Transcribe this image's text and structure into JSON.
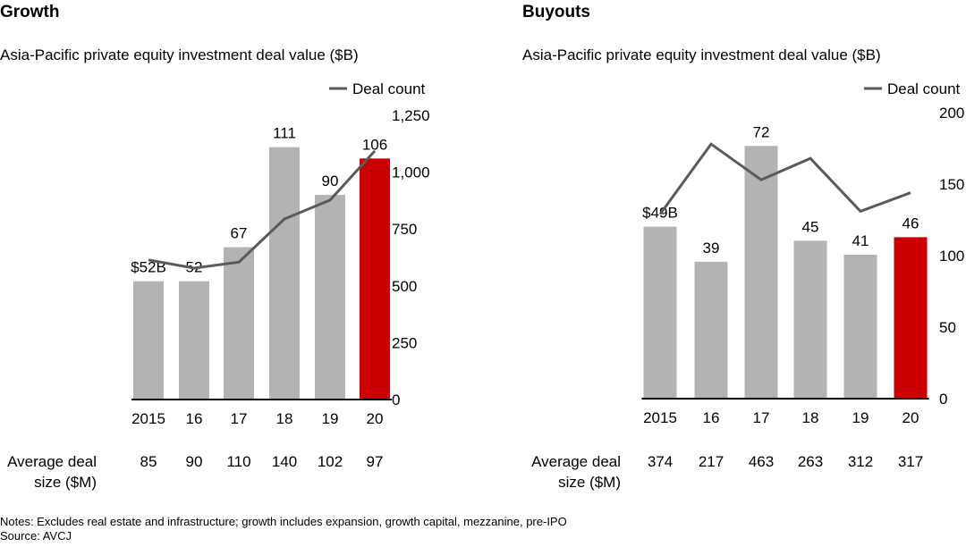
{
  "notes": "Notes: Excludes real estate and infrastructure; growth includes expansion, growth capital, mezzanine, pre-IPO",
  "source": "Source: AVCJ",
  "colors": {
    "bar": "#b3b3b3",
    "highlight": "#cc0000",
    "line": "#5a5a5a",
    "axis": "#000000"
  },
  "chart_data": [
    {
      "type": "bar",
      "title": "Growth",
      "subtitle": "Asia-Pacific private equity investment deal value ($B)",
      "categories": [
        "2015",
        "16",
        "17",
        "18",
        "19",
        "20"
      ],
      "values": [
        52,
        52,
        67,
        111,
        90,
        106
      ],
      "value_labels": [
        "$52B",
        "52",
        "67",
        "111",
        "90",
        "106"
      ],
      "bar_ylim": [
        0,
        125
      ],
      "highlight_index": 5,
      "line_series": {
        "name": "Deal count",
        "values": [
          614,
          578,
          604,
          794,
          877,
          1093
        ],
        "axis": "right"
      },
      "right_axis": {
        "ylim": [
          0,
          1250
        ],
        "ticks": [
          "0",
          "250",
          "500",
          "750",
          "1,000",
          "1,250"
        ]
      },
      "legend": "top-right",
      "grid": false,
      "avg_label": [
        "Average deal",
        "size ($M)"
      ],
      "avg_values": [
        "85",
        "90",
        "110",
        "140",
        "102",
        "97"
      ]
    },
    {
      "type": "bar",
      "title": "Buyouts",
      "subtitle": "Asia-Pacific private equity investment deal value ($B)",
      "categories": [
        "2015",
        "16",
        "17",
        "18",
        "19",
        "20"
      ],
      "values": [
        49,
        39,
        72,
        45,
        41,
        46
      ],
      "value_labels": [
        "$49B",
        "39",
        "72",
        "45",
        "41",
        "46"
      ],
      "bar_ylim": [
        0,
        81.5
      ],
      "highlight_index": 5,
      "line_series": {
        "name": "Deal count",
        "values": [
          129,
          178,
          153,
          168,
          131,
          144
        ],
        "axis": "right"
      },
      "right_axis": {
        "ylim": [
          0,
          200
        ],
        "ticks": [
          "0",
          "50",
          "100",
          "150",
          "200"
        ]
      },
      "legend": "top-right",
      "grid": false,
      "avg_label": [
        "Average deal",
        "size ($M)"
      ],
      "avg_values": [
        "374",
        "217",
        "463",
        "263",
        "312",
        "317"
      ]
    }
  ]
}
